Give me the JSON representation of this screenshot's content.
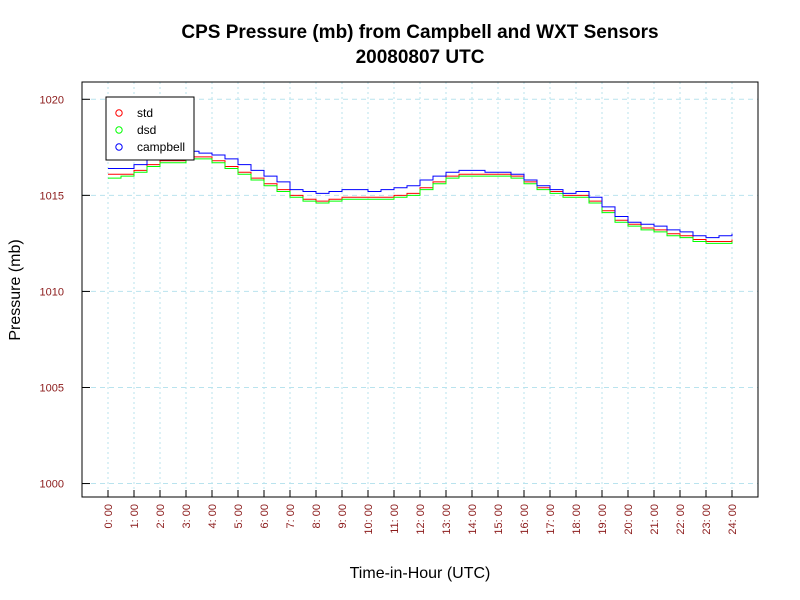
{
  "chart_data": {
    "type": "line",
    "title": "CPS Pressure (mb) from Campbell and WXT Sensors",
    "subtitle": "20080807  UTC",
    "xlabel": "Time-in-Hour (UTC)",
    "ylabel": "Pressure (mb)",
    "xlim": [
      -1,
      25
    ],
    "ylim": [
      999.3,
      1020.9
    ],
    "grid": true,
    "legend_position": "top-left",
    "x_tick_labels": [
      "0: 00",
      "1: 00",
      "2: 00",
      "3: 00",
      "4: 00",
      "5: 00",
      "6: 00",
      "7: 00",
      "8: 00",
      "9: 00",
      "10: 00",
      "11: 00",
      "12: 00",
      "13: 00",
      "14: 00",
      "15: 00",
      "16: 00",
      "17: 00",
      "18: 00",
      "19: 00",
      "20: 00",
      "21: 00",
      "22: 00",
      "23: 00",
      "24: 00"
    ],
    "y_ticks": [
      1000,
      1005,
      1010,
      1015,
      1020
    ],
    "y_tick_labels": [
      "1000",
      "1005",
      "1010",
      "1015",
      "1020"
    ],
    "x": [
      0,
      0.5,
      1,
      1.5,
      2,
      2.5,
      3,
      3.5,
      4,
      4.5,
      5,
      5.5,
      6,
      6.5,
      7,
      7.5,
      8,
      8.5,
      9,
      9.5,
      10,
      10.5,
      11,
      11.5,
      12,
      12.5,
      13,
      13.5,
      14,
      14.5,
      15,
      15.5,
      16,
      16.5,
      17,
      17.5,
      18,
      18.5,
      19,
      19.5,
      20,
      20.5,
      21,
      21.5,
      22,
      22.5,
      23,
      23.5,
      24
    ],
    "series": [
      {
        "name": "std",
        "color": "#ff0000",
        "values": [
          1016.1,
          1016.1,
          1016.3,
          1016.6,
          1016.8,
          1016.8,
          1017.0,
          1017.0,
          1016.8,
          1016.5,
          1016.2,
          1015.9,
          1015.6,
          1015.3,
          1015.0,
          1014.8,
          1014.7,
          1014.8,
          1014.9,
          1014.9,
          1014.9,
          1014.9,
          1015.0,
          1015.1,
          1015.4,
          1015.7,
          1016.0,
          1016.1,
          1016.1,
          1016.1,
          1016.1,
          1016.0,
          1015.7,
          1015.4,
          1015.2,
          1015.0,
          1015.0,
          1014.7,
          1014.2,
          1013.7,
          1013.5,
          1013.3,
          1013.2,
          1013.0,
          1012.9,
          1012.7,
          1012.6,
          1012.6,
          1012.7
        ]
      },
      {
        "name": "dsd",
        "color": "#00ff00",
        "values": [
          1015.9,
          1016.0,
          1016.2,
          1016.5,
          1016.7,
          1016.7,
          1016.9,
          1016.9,
          1016.7,
          1016.4,
          1016.1,
          1015.8,
          1015.5,
          1015.2,
          1014.9,
          1014.7,
          1014.6,
          1014.7,
          1014.8,
          1014.8,
          1014.8,
          1014.8,
          1014.9,
          1015.0,
          1015.3,
          1015.6,
          1015.9,
          1016.0,
          1016.0,
          1016.0,
          1016.0,
          1015.9,
          1015.6,
          1015.3,
          1015.1,
          1014.9,
          1014.9,
          1014.6,
          1014.1,
          1013.6,
          1013.4,
          1013.2,
          1013.1,
          1012.9,
          1012.8,
          1012.6,
          1012.5,
          1012.5,
          1012.6
        ]
      },
      {
        "name": "campbell",
        "color": "#0000ff",
        "values": [
          1016.4,
          1016.4,
          1016.6,
          1016.9,
          1017.2,
          1017.2,
          1017.3,
          1017.2,
          1017.1,
          1016.9,
          1016.6,
          1016.3,
          1016.0,
          1015.7,
          1015.3,
          1015.2,
          1015.1,
          1015.2,
          1015.3,
          1015.3,
          1015.2,
          1015.3,
          1015.4,
          1015.5,
          1015.8,
          1016.0,
          1016.2,
          1016.3,
          1016.3,
          1016.2,
          1016.2,
          1016.1,
          1015.8,
          1015.5,
          1015.3,
          1015.1,
          1015.2,
          1014.9,
          1014.4,
          1013.9,
          1013.6,
          1013.5,
          1013.4,
          1013.2,
          1013.1,
          1012.9,
          1012.8,
          1012.9,
          1013.0
        ]
      }
    ]
  }
}
